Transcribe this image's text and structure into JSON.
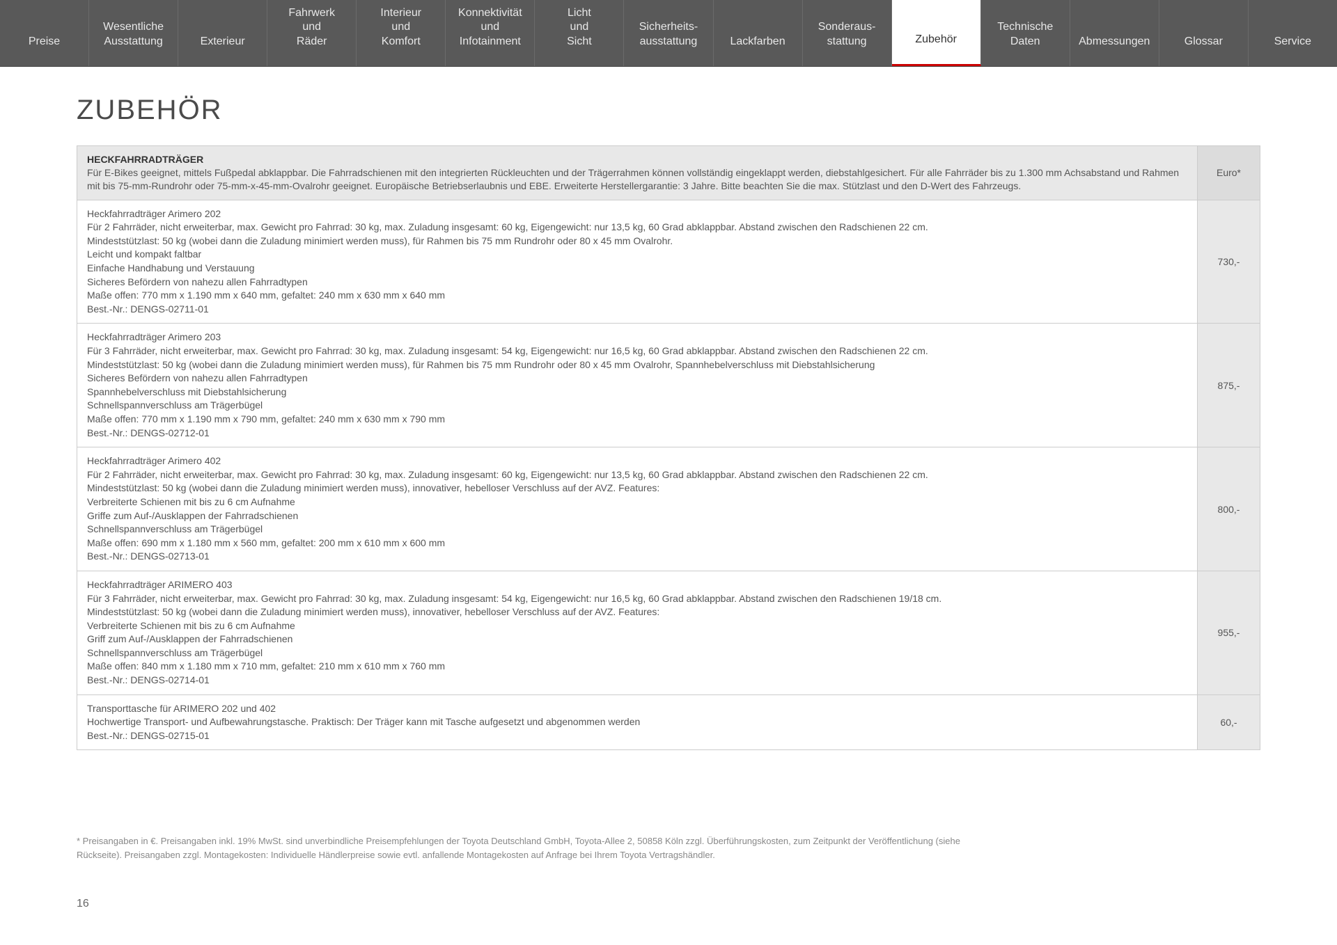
{
  "nav": {
    "items": [
      {
        "label": "Preise",
        "active": false
      },
      {
        "label": "Wesentliche Ausstattung",
        "active": false
      },
      {
        "label": "Exterieur",
        "active": false
      },
      {
        "label": "Fahrwerk und Räder",
        "active": false
      },
      {
        "label": "Interieur und Komfort",
        "active": false
      },
      {
        "label": "Konnektivität und Infotainment",
        "active": false
      },
      {
        "label": "Licht und Sicht",
        "active": false
      },
      {
        "label": "Sicherheits-ausstattung",
        "active": false
      },
      {
        "label": "Lackfarben",
        "active": false
      },
      {
        "label": "Sonderaus-stattung",
        "active": false
      },
      {
        "label": "Zubehör",
        "active": true
      },
      {
        "label": "Technische Daten",
        "active": false
      },
      {
        "label": "Abmessungen",
        "active": false
      },
      {
        "label": "Glossar",
        "active": false
      },
      {
        "label": "Service",
        "active": false
      }
    ]
  },
  "page_title": "ZUBEHÖR",
  "table": {
    "header": {
      "title": "HECKFAHRRADTRÄGER",
      "description": "Für E-Bikes geeignet, mittels Fußpedal abklappbar. Die Fahrradschienen mit den integrierten Rückleuchten und der Trägerrahmen können vollständig eingeklappt werden, diebstahlgesichert. Für alle Fahrräder bis zu 1.300 mm Achsabstand und Rahmen mit bis 75-mm-Rundrohr oder 75-mm-x-45-mm-Ovalrohr geeignet. Europäische Betriebserlaubnis und EBE. Erweiterte Herstellergarantie: 3 Jahre. Bitte beachten Sie die max. Stützlast und den D-Wert des Fahrzeugs.",
      "price_label": "Euro*"
    },
    "rows": [
      {
        "title": "Heckfahrradträger Arimero 202",
        "lines": [
          "Für 2 Fahrräder, nicht erweiterbar, max. Gewicht pro Fahrrad: 30 kg, max. Zuladung insgesamt: 60 kg, Eigengewicht: nur 13,5 kg, 60 Grad abklappbar. Abstand zwischen den Radschienen 22 cm.",
          "Mindeststützlast: 50 kg (wobei dann die Zuladung minimiert werden muss), für Rahmen bis 75 mm Rundrohr oder 80 x 45 mm Ovalrohr.",
          "Leicht und kompakt faltbar",
          "Einfache Handhabung und Verstauung",
          "Sicheres Befördern von nahezu allen Fahrradtypen",
          "Maße offen: 770 mm x 1.190 mm x 640 mm, gefaltet: 240 mm x 630 mm x 640 mm",
          "Best.-Nr.: DENGS-02711-01"
        ],
        "price": "730,-"
      },
      {
        "title": "Heckfahrradträger Arimero 203",
        "lines": [
          "Für 3 Fahrräder, nicht erweiterbar, max. Gewicht pro Fahrrad: 30 kg, max. Zuladung insgesamt: 54 kg, Eigengewicht: nur 16,5 kg, 60 Grad abklappbar. Abstand zwischen den Radschienen 22 cm.",
          "Mindeststützlast: 50 kg (wobei dann die Zuladung minimiert werden muss), für Rahmen bis 75 mm Rundrohr oder 80 x 45 mm Ovalrohr, Spannhebelverschluss mit Diebstahlsicherung",
          "Sicheres Befördern von nahezu allen Fahrradtypen",
          "Spannhebelverschluss mit Diebstahlsicherung",
          "Schnellspannverschluss am Trägerbügel",
          "Maße offen: 770 mm x 1.190 mm x 790 mm, gefaltet: 240 mm x 630 mm x 790 mm",
          "Best.-Nr.: DENGS-02712-01"
        ],
        "price": "875,-"
      },
      {
        "title": "Heckfahrradträger Arimero 402",
        "lines": [
          "Für 2 Fahrräder, nicht erweiterbar, max. Gewicht pro Fahrrad: 30 kg, max. Zuladung insgesamt: 60 kg, Eigengewicht: nur 13,5 kg, 60 Grad abklappbar. Abstand zwischen den Radschienen 22 cm.",
          "Mindeststützlast: 50 kg (wobei dann die Zuladung minimiert werden muss), innovativer, hebelloser Verschluss auf der AVZ. Features:",
          "Verbreiterte Schienen mit bis zu 6 cm Aufnahme",
          "Griffe zum Auf-/Ausklappen der Fahrradschienen",
          "Schnellspannverschluss am Trägerbügel",
          "Maße offen: 690 mm x 1.180 mm x 560 mm, gefaltet: 200 mm x 610 mm x 600 mm",
          "Best.-Nr.: DENGS-02713-01"
        ],
        "price": "800,-"
      },
      {
        "title": "Heckfahrradträger ARIMERO 403",
        "lines": [
          "Für 3 Fahrräder, nicht erweiterbar, max. Gewicht pro Fahrrad: 30 kg, max. Zuladung insgesamt: 54 kg, Eigengewicht: nur 16,5 kg, 60 Grad abklappbar. Abstand zwischen den Radschienen 19/18 cm.",
          "Mindeststützlast: 50 kg (wobei dann die Zuladung minimiert werden muss), innovativer, hebelloser Verschluss auf der AVZ. Features:",
          "Verbreiterte Schienen mit bis zu 6 cm Aufnahme",
          "Griff zum Auf-/Ausklappen der Fahrradschienen",
          "Schnellspannverschluss am Trägerbügel",
          "Maße offen: 840 mm x 1.180 mm x 710 mm, gefaltet: 210 mm x 610 mm x 760 mm",
          "Best.-Nr.: DENGS-02714-01"
        ],
        "price": "955,-"
      },
      {
        "title": "Transporttasche für ARIMERO 202 und 402",
        "lines": [
          "Hochwertige Transport- und Aufbewahrungstasche. Praktisch: Der Träger kann mit Tasche aufgesetzt und abgenommen werden",
          "Best.-Nr.: DENGS-02715-01"
        ],
        "price": "60,-"
      }
    ]
  },
  "footnote": "* Preisangaben in €. Preisangaben inkl. 19% MwSt. sind unverbindliche Preisempfehlungen der Toyota Deutschland GmbH, Toyota-Allee 2, 50858 Köln zzgl. Überführungskosten, zum Zeitpunkt der Veröffentlichung (siehe Rückseite). Preisangaben zzgl. Montagekosten: Individuelle Händlerpreise sowie evtl. anfallende Montagekosten auf Anfrage bei Ihrem Toyota Vertragshändler.",
  "page_number": "16",
  "colors": {
    "nav_bg": "#595959",
    "nav_text": "#e8e8e8",
    "active_underline": "#cc0000",
    "header_bg": "#e8e8e8",
    "price_bg": "#e8e8e8",
    "border": "#cccccc",
    "text": "#555555"
  }
}
